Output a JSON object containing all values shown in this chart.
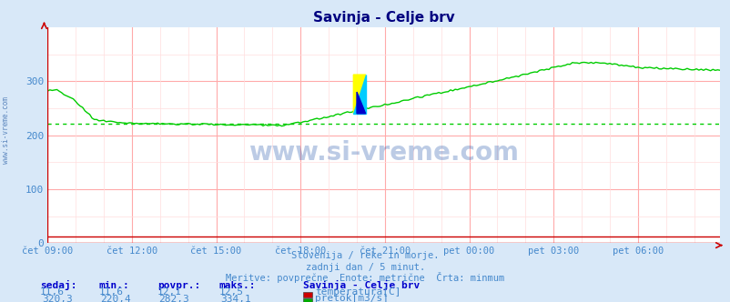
{
  "title": "Savinja - Celje brv",
  "title_color": "#000080",
  "bg_color": "#d8e8f8",
  "plot_bg_color": "#ffffff",
  "grid_major_color": "#ffaaaa",
  "grid_minor_color": "#ffdddd",
  "tick_color": "#4488cc",
  "axis_color": "#cc0000",
  "ylabel_min": 0,
  "ylabel_max": 400,
  "yticks": [
    0,
    100,
    200,
    300
  ],
  "xtick_labels": [
    "čet 09:00",
    "čet 12:00",
    "čet 15:00",
    "čet 18:00",
    "čet 21:00",
    "pet 00:00",
    "pet 03:00",
    "pet 06:00"
  ],
  "n_points": 288,
  "avg_line_value": 220.4,
  "temp_value": 11.6,
  "watermark": "www.si-vreme.com",
  "footer_line1": "Slovenija / reke in morje.",
  "footer_line2": "zadnji dan / 5 minut.",
  "footer_line3": "Meritve: povprečne  Enote: metrične  Črta: minmum",
  "legend_title": "Savinja - Celje brv",
  "legend_items": [
    {
      "label": "temperatura[C]",
      "color": "#cc0000"
    },
    {
      "label": "pretok[m3/s]",
      "color": "#00aa00"
    }
  ],
  "table_headers": [
    "sedaj:",
    "min.:",
    "povpr.:",
    "maks.:"
  ],
  "table_rows": [
    [
      "11,6",
      "11,6",
      "12,1",
      "12,5"
    ],
    [
      "320,3",
      "220,4",
      "282,3",
      "334,1"
    ]
  ]
}
